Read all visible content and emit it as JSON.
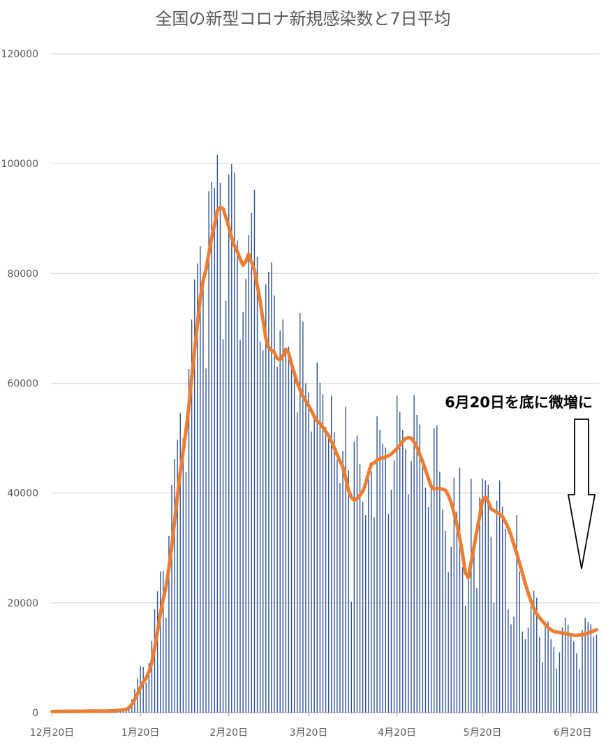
{
  "chart_data": {
    "type": "bar",
    "title": "全国の新型コロナ新規感染数と7日平均",
    "xlabel": "",
    "ylabel": "",
    "ylim": [
      0,
      120000
    ],
    "yticks": [
      "0",
      "20000",
      "40000",
      "60000",
      "80000",
      "100000",
      "120000"
    ],
    "xticks": [
      "12月20日",
      "1月20日",
      "2月20日",
      "3月20日",
      "4月20日",
      "5月20日",
      "6月20日"
    ],
    "grid": true,
    "legend": "none",
    "date_start": "12月20日",
    "date_end": "6月26日",
    "annotation": "6月20日を底に微増に",
    "colors": {
      "bars": "#2f5597",
      "average_line": "#ed7d31",
      "grid": "#d9d9d9",
      "text": "#595959"
    },
    "series": [
      {
        "type": "bar",
        "values": [
          200,
          220,
          240,
          260,
          250,
          280,
          300,
          250,
          240,
          230,
          270,
          310,
          340,
          320,
          310,
          300,
          260,
          240,
          230,
          280,
          330,
          390,
          420,
          480,
          500,
          450,
          600,
          1100,
          2400,
          4300,
          6200,
          8500,
          8300,
          5500,
          9000,
          13100,
          18800,
          22100,
          25700,
          25800,
          17300,
          32200,
          41500,
          46200,
          49700,
          54600,
          50000,
          43800,
          62600,
          71600,
          78900,
          81800,
          85000,
          78400,
          62700,
          95000,
          96700,
          95600,
          101600,
          96500,
          68000,
          75000,
          98000,
          99900,
          98400,
          86000,
          67900,
          73000,
          79000,
          87000,
          91000,
          95200,
          83000,
          67600,
          66000,
          78000,
          80300,
          82000,
          76000,
          63000,
          69600,
          71600,
          65800,
          66700,
          64300,
          61000,
          54700,
          72800,
          71200,
          60000,
          58300,
          51200,
          54100,
          63800,
          60100,
          58000,
          52000,
          50700,
          57800,
          51100,
          46100,
          41800,
          47600,
          55700,
          44200,
          20200,
          49400,
          50500,
          45300,
          38400,
          36000,
          43800,
          44000,
          35600,
          54000,
          51500,
          49000,
          48300,
          36200,
          40600,
          46000,
          57800,
          54800,
          51500,
          48000,
          39800,
          45800,
          57800,
          54200,
          52500,
          45000,
          41000,
          37400,
          41000,
          51800,
          52300,
          43900,
          37000,
          33100,
          25600,
          30200,
          42800,
          36600,
          44600,
          26500,
          19500,
          26000,
          42600,
          30500,
          22700,
          39200,
          42600,
          42300,
          41500,
          32000,
          20000,
          38600,
          42300,
          37500,
          33500,
          18800,
          16100,
          17500,
          36000,
          25700,
          14800,
          13400,
          15500,
          19400,
          22200,
          20900,
          13800,
          9200,
          15800,
          16600,
          13400,
          12000,
          8000,
          11000,
          15500,
          17300,
          16000,
          14000,
          13000,
          10800,
          7900,
          15000,
          17300,
          16500,
          16100,
          13900,
          14200
        ]
      },
      {
        "type": "line",
        "values": [
          200,
          210,
          220,
          235,
          245,
          255,
          260,
          255,
          250,
          245,
          250,
          260,
          275,
          285,
          290,
          295,
          290,
          285,
          280,
          285,
          300,
          330,
          370,
          420,
          470,
          500,
          600,
          900,
          1500,
          2400,
          3400,
          4600,
          5600,
          6300,
          7400,
          9200,
          11800,
          14800,
          18000,
          20700,
          23000,
          26300,
          30300,
          34900,
          39500,
          43900,
          47600,
          51400,
          55800,
          61000,
          66000,
          70800,
          75500,
          78700,
          80700,
          83600,
          86500,
          88800,
          91500,
          92000,
          91800,
          90200,
          88500,
          86500,
          85000,
          84000,
          82600,
          81500,
          82200,
          83500,
          82000,
          80600,
          77800,
          75000,
          71500,
          68200,
          66500,
          66000,
          65600,
          64500,
          64300,
          65000,
          66200,
          65500,
          63500,
          61800,
          60100,
          58800,
          57600,
          56800,
          55900,
          55000,
          53900,
          53100,
          52700,
          52000,
          51200,
          50500,
          49400,
          48200,
          47000,
          45800,
          44800,
          42800,
          40500,
          39200,
          38700,
          39000,
          39600,
          40300,
          41700,
          43600,
          45300,
          45500,
          46000,
          46300,
          46400,
          46600,
          46800,
          47100,
          47600,
          48100,
          48700,
          49400,
          49900,
          50100,
          50000,
          49300,
          48300,
          47000,
          45700,
          44200,
          42700,
          41200,
          40800,
          40800,
          40800,
          40700,
          40500,
          39600,
          38300,
          36400,
          34300,
          31800,
          28900,
          25500,
          24600,
          27300,
          30200,
          33100,
          35800,
          38700,
          39300,
          38500,
          37100,
          36800,
          36500,
          36200,
          35700,
          34800,
          33700,
          32300,
          30600,
          29000,
          27200,
          25400,
          23500,
          21800,
          20300,
          19000,
          18000,
          17300,
          16700,
          16100,
          15500,
          15100,
          14800,
          14700,
          14600,
          14500,
          14400,
          14300,
          14200,
          14100,
          14100,
          14150,
          14200,
          14300,
          14500,
          14700,
          14900,
          15100
        ]
      }
    ]
  }
}
